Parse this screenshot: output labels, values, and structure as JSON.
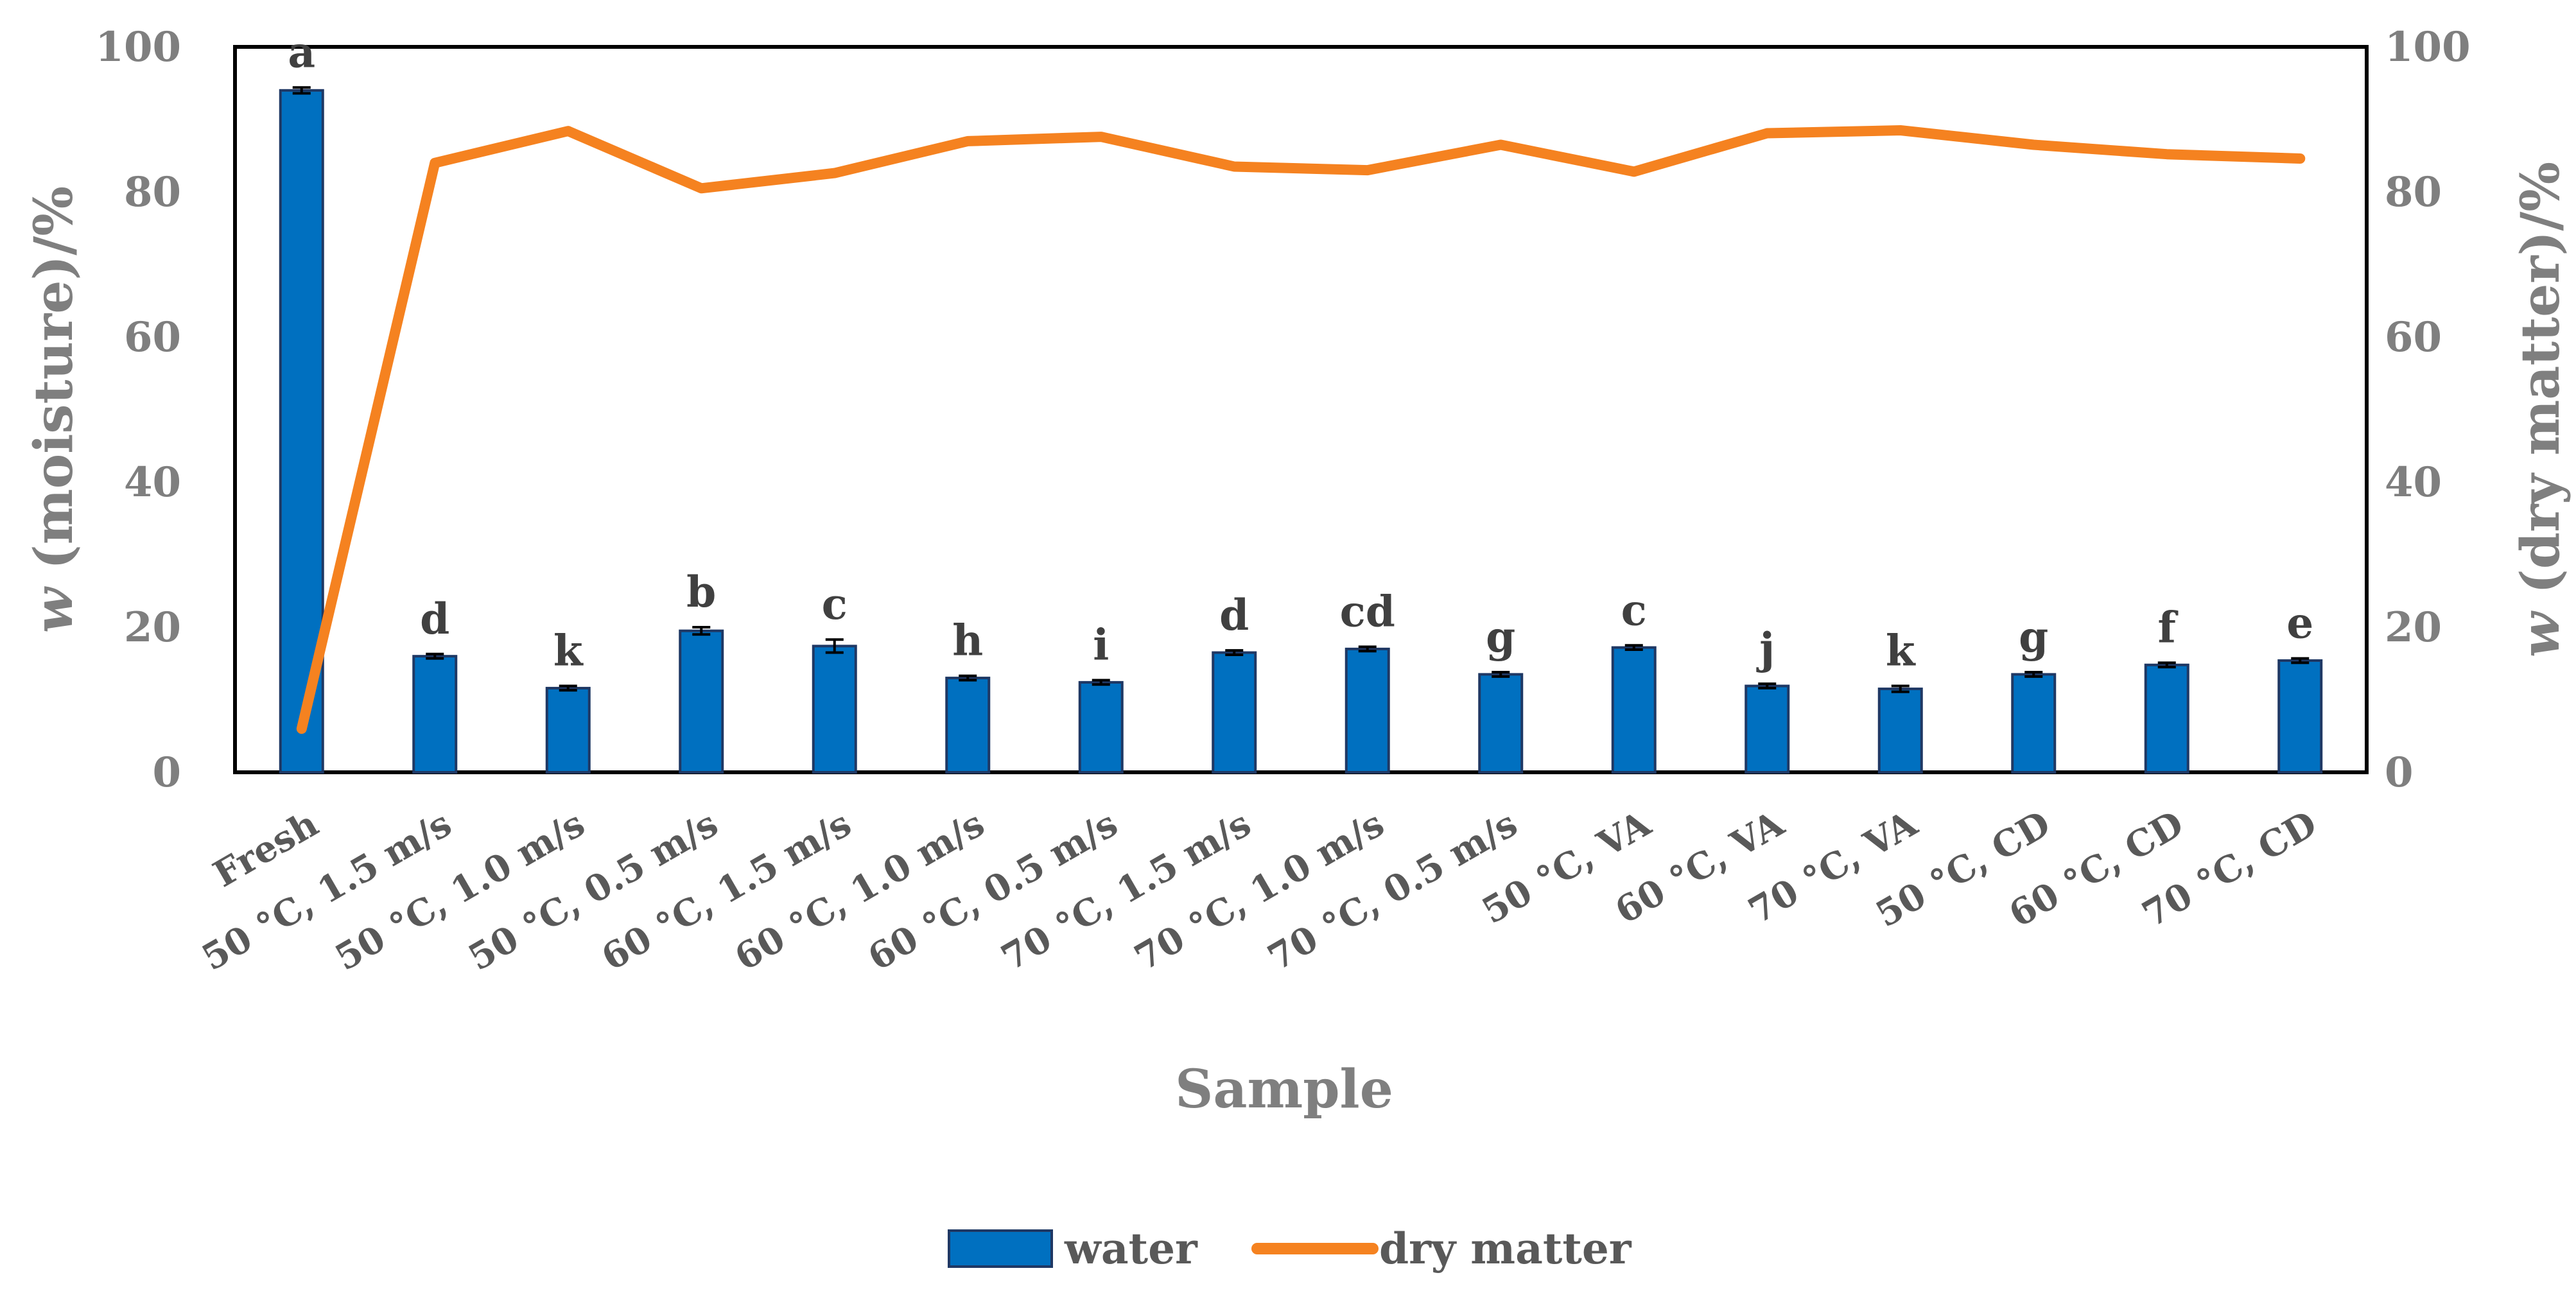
{
  "chart_data": {
    "type": "bar+line",
    "categories": [
      "Fresh",
      "50 °C, 1.5 m/s",
      "50 °C, 1.0 m/s",
      "50 °C, 0.5 m/s",
      "60 °C, 1.5 m/s",
      "60 °C, 1.0 m/s",
      "60 °C, 0.5 m/s",
      "70 °C, 1.5 m/s",
      "70 °C, 1.0 m/s",
      "70 °C, 0.5 m/s",
      "50 °C, VA",
      "60 °C, VA",
      "70 °C, VA",
      "50 °C, CD",
      "60 °C, CD",
      "70 °C, CD"
    ],
    "series": [
      {
        "name": "water",
        "type": "bar",
        "axis": "left",
        "color": "#0070c0",
        "values": [
          94.0,
          16.0,
          11.6,
          19.5,
          17.4,
          13.0,
          12.4,
          16.5,
          17.0,
          13.5,
          17.2,
          11.9,
          11.5,
          13.5,
          14.8,
          15.4
        ],
        "errors": [
          0.4,
          0.3,
          0.3,
          0.5,
          0.9,
          0.3,
          0.3,
          0.3,
          0.3,
          0.3,
          0.3,
          0.3,
          0.4,
          0.3,
          0.3,
          0.3
        ],
        "letters": [
          "a",
          "d",
          "k",
          "b",
          "c",
          "h",
          "i",
          "d",
          "cd",
          "g",
          "c",
          "j",
          "k",
          "g",
          "f",
          "e"
        ]
      },
      {
        "name": "dry matter",
        "type": "line",
        "axis": "right",
        "color": "#f58220",
        "values": [
          6.0,
          84.0,
          88.4,
          80.5,
          82.6,
          87.0,
          87.6,
          83.5,
          83.0,
          86.5,
          82.8,
          88.1,
          88.5,
          86.5,
          85.2,
          84.6
        ]
      }
    ],
    "xlabel": "Sample",
    "ylabel_left": "w (moisture)/%",
    "ylabel_right": "w (dry matter)/%",
    "ylim": [
      0,
      100
    ],
    "yticks": [
      "0",
      "20",
      "40",
      "60",
      "80",
      "100"
    ],
    "legend": {
      "position": "bottom",
      "items": [
        "water",
        "dry matter"
      ]
    }
  }
}
